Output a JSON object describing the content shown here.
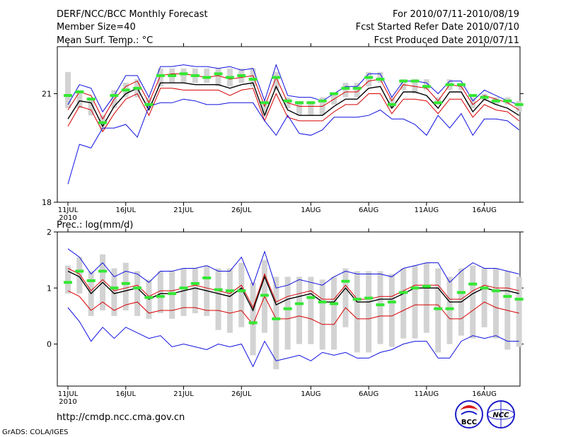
{
  "header": {
    "title": "DERF/NCC/BCC Monthly Forecast",
    "member_size": "Member Size=40",
    "variable": "Mean Surf. Temp.: °C",
    "period": "For 2010/07/11-2010/08/19",
    "started": "Fcst Started Refer Date 2010/07/10",
    "produced": "Fcst Produced Date 2010/07/11"
  },
  "footer": {
    "url": "http://cmdp.ncc.cma.gov.cn",
    "credit": "GrADS: COLA/IGES",
    "logo_bcc": "BCC",
    "logo_ncc": "NCC"
  },
  "colors": {
    "box": "#d3d3d3",
    "median": "#33e833",
    "mean": "#000000",
    "ci": "#d60000",
    "extreme": "#1010e0",
    "axis": "#000000"
  },
  "x_tick_labels": [
    "11JUL",
    "16JUL",
    "21JUL",
    "26JUL",
    "1AUG",
    "6AUG",
    "11AUG",
    "16AUG"
  ],
  "x_tick_days": [
    0,
    5,
    10,
    15,
    21,
    26,
    31,
    36
  ],
  "x_year_label": "2010",
  "chart_data": [
    {
      "type": "line",
      "title": "Mean Surf. Temp.: °C",
      "ylabel": "°C",
      "ylim": [
        18,
        22.3
      ],
      "yticks": [
        18,
        21
      ],
      "x": [
        0,
        1,
        2,
        3,
        4,
        5,
        6,
        7,
        8,
        9,
        10,
        11,
        12,
        13,
        14,
        15,
        16,
        17,
        18,
        19,
        20,
        21,
        22,
        23,
        24,
        25,
        26,
        27,
        28,
        29,
        30,
        31,
        32,
        33,
        34,
        35,
        36,
        37,
        38,
        39
      ],
      "series": [
        {
          "name": "max",
          "values": [
            20.7,
            21.25,
            21.15,
            20.5,
            20.95,
            21.5,
            21.5,
            20.9,
            21.75,
            21.75,
            21.8,
            21.75,
            21.75,
            21.7,
            21.75,
            21.65,
            21.7,
            20.8,
            21.8,
            20.95,
            20.9,
            20.9,
            20.8,
            21.0,
            21.2,
            21.2,
            21.55,
            21.55,
            20.9,
            21.35,
            21.35,
            21.3,
            21.0,
            21.35,
            21.35,
            20.8,
            21.1,
            20.95,
            20.8,
            20.7
          ]
        },
        {
          "name": "upper",
          "values": [
            20.55,
            21.05,
            20.95,
            20.3,
            20.85,
            21.2,
            21.35,
            20.75,
            21.5,
            21.55,
            21.55,
            21.5,
            21.45,
            21.5,
            21.4,
            21.45,
            21.5,
            20.65,
            21.45,
            20.75,
            20.65,
            20.65,
            20.65,
            20.85,
            21.05,
            21.05,
            21.35,
            21.4,
            20.8,
            21.25,
            21.2,
            21.15,
            20.8,
            21.25,
            21.2,
            20.7,
            20.95,
            20.85,
            20.75,
            20.55
          ]
        },
        {
          "name": "mean",
          "values": [
            20.3,
            20.8,
            20.75,
            20.1,
            20.65,
            21.0,
            21.15,
            20.55,
            21.3,
            21.3,
            21.3,
            21.25,
            21.25,
            21.25,
            21.15,
            21.25,
            21.3,
            20.4,
            21.2,
            20.55,
            20.4,
            20.4,
            20.4,
            20.65,
            20.85,
            20.85,
            21.15,
            21.2,
            20.6,
            21.05,
            21.05,
            20.95,
            20.6,
            21.05,
            21.05,
            20.5,
            20.85,
            20.7,
            20.6,
            20.4
          ]
        },
        {
          "name": "lower",
          "values": [
            20.1,
            20.65,
            20.55,
            19.95,
            20.45,
            20.85,
            21.0,
            20.4,
            21.15,
            21.15,
            21.1,
            21.1,
            21.1,
            21.1,
            20.95,
            21.1,
            21.15,
            20.25,
            21.0,
            20.35,
            20.25,
            20.25,
            20.25,
            20.5,
            20.7,
            20.7,
            21.0,
            21.0,
            20.45,
            20.85,
            20.85,
            20.8,
            20.45,
            20.85,
            20.85,
            20.35,
            20.7,
            20.55,
            20.5,
            20.25
          ]
        },
        {
          "name": "min",
          "values": [
            18.5,
            19.6,
            19.5,
            20.05,
            20.05,
            20.15,
            19.8,
            20.65,
            20.75,
            20.75,
            20.85,
            20.8,
            20.7,
            20.7,
            20.75,
            20.75,
            20.75,
            20.25,
            19.85,
            20.4,
            19.9,
            19.85,
            20.0,
            20.35,
            20.35,
            20.35,
            20.4,
            20.55,
            20.3,
            20.3,
            20.15,
            19.85,
            20.4,
            20.05,
            20.45,
            19.85,
            20.3,
            20.3,
            20.25,
            20.0
          ]
        }
      ],
      "boxes": {
        "high": [
          21.6,
          21.1,
          20.9,
          20.4,
          21.1,
          21.3,
          21.4,
          20.9,
          21.7,
          21.7,
          21.7,
          21.7,
          21.7,
          21.7,
          21.7,
          21.7,
          21.7,
          20.8,
          21.6,
          20.9,
          20.8,
          20.8,
          20.9,
          21.0,
          21.3,
          21.3,
          21.6,
          21.6,
          20.9,
          21.4,
          21.4,
          21.4,
          20.9,
          21.4,
          21.3,
          20.9,
          21.0,
          20.9,
          20.9,
          20.8
        ]
      },
      "box_low": [
        20.6,
        20.6,
        20.4,
        20.0,
        20.6,
        20.9,
        20.9,
        20.6,
        21.2,
        21.3,
        21.3,
        21.3,
        21.3,
        21.2,
        21.2,
        21.3,
        21.2,
        20.4,
        21.1,
        20.6,
        20.4,
        20.4,
        20.4,
        20.7,
        20.9,
        20.9,
        21.2,
        21.3,
        20.6,
        21.1,
        21.0,
        21.1,
        20.7,
        21.1,
        21.1,
        20.6,
        20.8,
        20.7,
        20.7,
        20.5
      ],
      "medians": [
        20.95,
        21.05,
        20.85,
        20.2,
        20.95,
        21.1,
        21.15,
        20.7,
        21.5,
        21.5,
        21.55,
        21.5,
        21.45,
        21.55,
        21.45,
        21.5,
        21.4,
        20.75,
        21.45,
        20.8,
        20.75,
        20.75,
        20.8,
        21.0,
        21.15,
        21.15,
        21.45,
        21.4,
        20.7,
        21.35,
        21.35,
        21.2,
        20.75,
        21.25,
        21.25,
        20.95,
        20.9,
        20.8,
        20.8,
        20.7
      ]
    },
    {
      "type": "line",
      "title": "Prec.: log(mm/d)",
      "ylabel": "log(mm/d)",
      "ylim": [
        -0.75,
        2
      ],
      "yticks": [
        0,
        1,
        2
      ],
      "x": [
        0,
        1,
        2,
        3,
        4,
        5,
        6,
        7,
        8,
        9,
        10,
        11,
        12,
        13,
        14,
        15,
        16,
        17,
        18,
        19,
        20,
        21,
        22,
        23,
        24,
        25,
        26,
        27,
        28,
        29,
        30,
        31,
        32,
        33,
        34,
        35,
        36,
        37,
        38,
        39
      ],
      "series": [
        {
          "name": "max",
          "values": [
            1.7,
            1.55,
            1.25,
            1.45,
            1.2,
            1.3,
            1.25,
            1.1,
            1.3,
            1.3,
            1.35,
            1.35,
            1.4,
            1.3,
            1.3,
            1.55,
            1.05,
            1.65,
            1.0,
            1.05,
            1.15,
            1.1,
            1.05,
            1.2,
            1.3,
            1.25,
            1.25,
            1.25,
            1.2,
            1.35,
            1.4,
            1.45,
            1.45,
            1.1,
            1.3,
            1.45,
            1.35,
            1.35,
            1.3,
            1.25
          ]
        },
        {
          "name": "upper",
          "values": [
            1.35,
            1.25,
            0.95,
            1.15,
            0.95,
            1.0,
            1.05,
            0.85,
            0.95,
            0.95,
            1.0,
            1.05,
            1.0,
            0.95,
            0.9,
            1.05,
            0.65,
            1.25,
            0.75,
            0.85,
            0.9,
            0.95,
            0.8,
            0.8,
            1.05,
            0.8,
            0.8,
            0.85,
            0.85,
            0.95,
            1.05,
            1.05,
            1.05,
            0.8,
            0.8,
            0.95,
            1.05,
            1.0,
            1.0,
            0.95
          ]
        },
        {
          "name": "mean",
          "values": [
            1.3,
            1.2,
            0.9,
            1.1,
            0.9,
            0.95,
            1.0,
            0.8,
            0.9,
            0.9,
            0.95,
            1.0,
            0.95,
            0.9,
            0.85,
            1.0,
            0.6,
            1.2,
            0.7,
            0.8,
            0.85,
            0.9,
            0.75,
            0.75,
            1.0,
            0.75,
            0.75,
            0.8,
            0.8,
            0.9,
            1.0,
            1.0,
            1.0,
            0.75,
            0.75,
            0.9,
            1.0,
            0.95,
            0.95,
            0.9
          ]
        },
        {
          "name": "lower",
          "values": [
            0.95,
            0.85,
            0.6,
            0.75,
            0.6,
            0.7,
            0.75,
            0.55,
            0.6,
            0.6,
            0.65,
            0.65,
            0.6,
            0.6,
            0.55,
            0.6,
            0.35,
            0.85,
            0.45,
            0.45,
            0.5,
            0.45,
            0.35,
            0.35,
            0.65,
            0.45,
            0.45,
            0.5,
            0.5,
            0.6,
            0.7,
            0.7,
            0.7,
            0.45,
            0.45,
            0.6,
            0.75,
            0.65,
            0.6,
            0.55
          ]
        },
        {
          "name": "min",
          "values": [
            0.65,
            0.4,
            0.05,
            0.3,
            0.1,
            0.3,
            0.2,
            0.1,
            0.15,
            -0.05,
            0.0,
            -0.05,
            -0.1,
            0.0,
            -0.05,
            0.0,
            -0.4,
            0.05,
            -0.3,
            -0.25,
            -0.2,
            -0.3,
            -0.15,
            -0.2,
            -0.15,
            -0.25,
            -0.25,
            -0.15,
            -0.1,
            0.0,
            0.05,
            0.05,
            -0.25,
            -0.25,
            0.05,
            0.15,
            0.1,
            0.15,
            0.05,
            0.05
          ]
        }
      ],
      "box_high": [
        1.4,
        1.55,
        1.3,
        1.6,
        1.35,
        1.45,
        1.3,
        1.15,
        1.3,
        1.3,
        1.35,
        1.35,
        1.4,
        1.35,
        1.35,
        1.45,
        1.1,
        1.5,
        1.2,
        1.2,
        1.2,
        1.2,
        1.15,
        1.2,
        1.35,
        1.3,
        1.3,
        1.3,
        1.25,
        1.35,
        1.4,
        1.45,
        1.35,
        1.2,
        1.35,
        1.4,
        1.35,
        1.35,
        1.3,
        1.2
      ],
      "box_low": [
        0.9,
        0.9,
        0.5,
        0.6,
        0.5,
        0.6,
        0.5,
        0.45,
        0.55,
        0.45,
        0.5,
        0.55,
        0.5,
        0.25,
        0.2,
        0.3,
        -0.2,
        0.2,
        -0.45,
        -0.1,
        0.0,
        0.0,
        -0.1,
        -0.1,
        0.3,
        -0.15,
        -0.15,
        0.0,
        -0.05,
        0.1,
        0.1,
        0.2,
        -0.15,
        0.0,
        0.15,
        0.1,
        0.3,
        0.1,
        -0.1,
        -0.05
      ],
      "medians": [
        1.1,
        1.3,
        1.13,
        1.3,
        1.0,
        1.08,
        1.0,
        0.83,
        0.85,
        0.9,
        1.0,
        1.08,
        1.18,
        0.97,
        0.95,
        0.95,
        0.38,
        0.87,
        0.45,
        0.63,
        0.72,
        0.83,
        0.75,
        0.72,
        1.12,
        0.8,
        0.82,
        0.7,
        0.75,
        0.92,
        1.0,
        1.03,
        0.63,
        0.63,
        0.92,
        1.07,
        1.0,
        0.95,
        0.85,
        0.8
      ]
    }
  ]
}
